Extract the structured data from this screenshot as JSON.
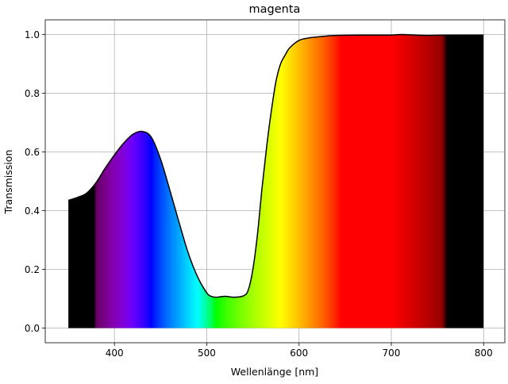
{
  "chart_data": {
    "type": "area",
    "title": "magenta",
    "xlabel": "Wellenlänge [nm]",
    "ylabel": "Transmission",
    "xlim": [
      325,
      823
    ],
    "ylim": [
      -0.05,
      1.05
    ],
    "xticks": [
      400,
      500,
      600,
      700,
      800
    ],
    "yticks": [
      0.0,
      0.2,
      0.4,
      0.6,
      0.8,
      1.0
    ],
    "xtick_labels": [
      "400",
      "500",
      "600",
      "700",
      "800"
    ],
    "ytick_labels": [
      "0.0",
      "0.2",
      "0.4",
      "0.6",
      "0.8",
      "1.0"
    ],
    "grid": true,
    "fill": "visible-spectrum gradient under curve",
    "line_color": "#000000",
    "series": [
      {
        "x": [
          350,
          360,
          370,
          380,
          390,
          400,
          410,
          420,
          430,
          440,
          450,
          460,
          470,
          480,
          490,
          500,
          505,
          510,
          520,
          530,
          540,
          545,
          550,
          555,
          560,
          565,
          570,
          575,
          580,
          585,
          590,
          600,
          610,
          620,
          630,
          640,
          660,
          680,
          700,
          710,
          720,
          740,
          760,
          780,
          800
        ],
        "y": [
          0.435,
          0.445,
          0.46,
          0.495,
          0.545,
          0.59,
          0.63,
          0.66,
          0.67,
          0.65,
          0.575,
          0.47,
          0.36,
          0.255,
          0.175,
          0.12,
          0.108,
          0.105,
          0.108,
          0.105,
          0.11,
          0.13,
          0.2,
          0.32,
          0.48,
          0.62,
          0.74,
          0.84,
          0.9,
          0.93,
          0.955,
          0.98,
          0.988,
          0.992,
          0.995,
          0.997,
          0.998,
          0.998,
          0.998,
          1.0,
          0.999,
          0.997,
          0.998,
          0.998,
          0.998
        ]
      }
    ]
  }
}
